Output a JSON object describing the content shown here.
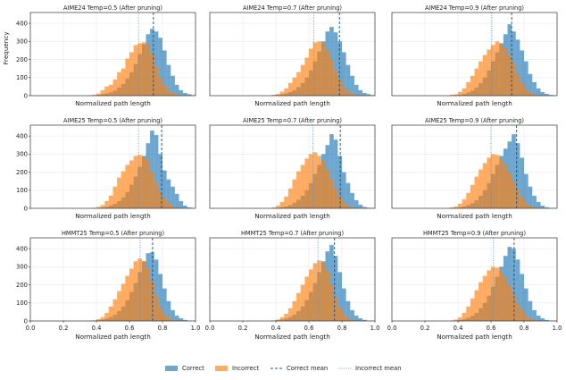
{
  "chart_data": {
    "type": "histogram",
    "shared_y_label": "Frequency",
    "x_label": "Normalized path length",
    "xlim": [
      0.0,
      1.0
    ],
    "ylim": [
      0,
      460
    ],
    "x_ticks": [
      "0.0",
      "0.2",
      "0.4",
      "0.6",
      "0.8",
      "1.0"
    ],
    "y_ticks": [
      "0",
      "100",
      "200",
      "300",
      "400"
    ],
    "bin_start": 0.0,
    "bin_width": 0.025,
    "legend": {
      "position": "bottom-center",
      "correct": "Correct",
      "incorrect": "Incorrect",
      "correct_mean": "Correct mean",
      "incorrect_mean": "Incorrect mean"
    },
    "colors": {
      "correct": "#1f77b4",
      "incorrect": "#ff7f0e",
      "correct_mean": "#1f4e79",
      "incorrect_mean": "#4a90d9",
      "grid": "#e8e8e8",
      "axis": "#333333"
    },
    "panels": [
      {
        "title": "AIME24 Temp=0.5 (After pruning)",
        "dataset": "AIME24",
        "temperature": 0.5,
        "correct_mean": 0.745,
        "incorrect_mean": 0.655,
        "correct": [
          0,
          0,
          0,
          0,
          0,
          0,
          0,
          0,
          0,
          0,
          0,
          0,
          0,
          0,
          1,
          2,
          4,
          8,
          12,
          18,
          28,
          45,
          65,
          95,
          130,
          175,
          230,
          285,
          340,
          370,
          355,
          320,
          250,
          170,
          110,
          60,
          30,
          15,
          8,
          3
        ],
        "incorrect": [
          0,
          0,
          0,
          0,
          0,
          0,
          0,
          0,
          0,
          0,
          0,
          0,
          0,
          0,
          0,
          5,
          12,
          30,
          50,
          60,
          90,
          130,
          150,
          205,
          240,
          280,
          290,
          295,
          280,
          230,
          160,
          100,
          60,
          30,
          15,
          8,
          3,
          1,
          0,
          0
        ]
      },
      {
        "title": "AIME24 Temp=0.7 (After pruning)",
        "dataset": "AIME24",
        "temperature": 0.7,
        "correct_mean": 0.785,
        "incorrect_mean": 0.63,
        "correct": [
          0,
          0,
          0,
          0,
          0,
          0,
          0,
          0,
          0,
          0,
          0,
          0,
          0,
          0,
          0,
          2,
          4,
          8,
          12,
          20,
          30,
          48,
          70,
          100,
          140,
          190,
          245,
          300,
          355,
          380,
          350,
          300,
          240,
          170,
          110,
          60,
          30,
          15,
          8,
          3
        ],
        "incorrect": [
          0,
          0,
          0,
          0,
          0,
          0,
          0,
          0,
          0,
          0,
          0,
          0,
          0,
          0,
          0,
          5,
          10,
          22,
          40,
          70,
          100,
          130,
          170,
          210,
          260,
          295,
          300,
          290,
          250,
          200,
          140,
          90,
          50,
          25,
          12,
          5,
          2,
          1,
          0,
          0
        ]
      },
      {
        "title": "AIME24 Temp=0.9 (After pruning)",
        "dataset": "AIME24",
        "temperature": 0.9,
        "correct_mean": 0.725,
        "incorrect_mean": 0.605,
        "correct": [
          0,
          0,
          0,
          0,
          0,
          0,
          0,
          0,
          0,
          0,
          0,
          0,
          0,
          0,
          0,
          2,
          5,
          10,
          18,
          28,
          45,
          70,
          100,
          140,
          190,
          240,
          290,
          340,
          395,
          355,
          310,
          250,
          190,
          120,
          75,
          40,
          20,
          10,
          4,
          2
        ],
        "incorrect": [
          0,
          0,
          0,
          0,
          0,
          0,
          0,
          0,
          0,
          0,
          0,
          0,
          0,
          0,
          5,
          8,
          20,
          40,
          75,
          110,
          150,
          190,
          225,
          255,
          280,
          300,
          285,
          260,
          220,
          180,
          120,
          70,
          35,
          18,
          8,
          3,
          1,
          0,
          0,
          0
        ]
      },
      {
        "title": "AIME25 Temp=0.5 (After pruning)",
        "dataset": "AIME25",
        "temperature": 0.5,
        "correct_mean": 0.795,
        "incorrect_mean": 0.655,
        "correct": [
          0,
          0,
          0,
          0,
          0,
          0,
          0,
          0,
          0,
          0,
          0,
          0,
          0,
          0,
          0,
          1,
          2,
          4,
          8,
          15,
          25,
          40,
          60,
          90,
          130,
          175,
          230,
          290,
          360,
          430,
          405,
          300,
          210,
          160,
          120,
          80,
          40,
          15,
          5,
          2
        ],
        "incorrect": [
          0,
          0,
          0,
          0,
          0,
          0,
          0,
          0,
          0,
          0,
          0,
          0,
          0,
          0,
          0,
          3,
          8,
          18,
          40,
          70,
          120,
          170,
          205,
          240,
          265,
          290,
          295,
          280,
          265,
          200,
          140,
          90,
          55,
          30,
          12,
          5,
          2,
          1,
          0,
          0
        ]
      },
      {
        "title": "AIME25 Temp=0.7 (After pruning)",
        "dataset": "AIME25",
        "temperature": 0.7,
        "correct_mean": 0.79,
        "incorrect_mean": 0.625,
        "correct": [
          0,
          0,
          0,
          0,
          0,
          0,
          0,
          0,
          0,
          0,
          0,
          0,
          0,
          0,
          0,
          1,
          3,
          6,
          10,
          18,
          30,
          48,
          70,
          100,
          140,
          190,
          240,
          300,
          350,
          410,
          380,
          290,
          200,
          140,
          85,
          45,
          20,
          8,
          3,
          1
        ],
        "incorrect": [
          0,
          0,
          0,
          0,
          0,
          0,
          0,
          0,
          0,
          0,
          0,
          0,
          0,
          0,
          0,
          5,
          15,
          35,
          65,
          110,
          160,
          205,
          240,
          275,
          300,
          310,
          290,
          260,
          210,
          160,
          110,
          65,
          35,
          15,
          6,
          2,
          1,
          0,
          0,
          0
        ]
      },
      {
        "title": "AIME25 Temp=0.9 (After pruning)",
        "dataset": "AIME25",
        "temperature": 0.9,
        "correct_mean": 0.755,
        "incorrect_mean": 0.6,
        "correct": [
          0,
          0,
          0,
          0,
          0,
          0,
          0,
          0,
          0,
          0,
          0,
          0,
          0,
          0,
          0,
          2,
          5,
          10,
          18,
          28,
          45,
          70,
          100,
          140,
          190,
          240,
          290,
          330,
          370,
          410,
          360,
          280,
          190,
          120,
          70,
          35,
          15,
          6,
          2,
          1
        ],
        "incorrect": [
          0,
          0,
          0,
          0,
          0,
          0,
          0,
          0,
          0,
          0,
          0,
          0,
          0,
          0,
          5,
          10,
          25,
          50,
          85,
          130,
          175,
          215,
          250,
          280,
          300,
          295,
          270,
          240,
          195,
          150,
          100,
          60,
          30,
          14,
          6,
          2,
          1,
          0,
          0,
          0
        ]
      },
      {
        "title": "HMMT25 Temp=0.5 (After pruning)",
        "dataset": "HMMT25",
        "temperature": 0.5,
        "correct_mean": 0.74,
        "incorrect_mean": 0.665,
        "correct": [
          0,
          0,
          0,
          0,
          0,
          0,
          0,
          0,
          0,
          0,
          0,
          0,
          0,
          0,
          1,
          2,
          4,
          8,
          14,
          22,
          35,
          55,
          80,
          115,
          160,
          210,
          270,
          330,
          375,
          380,
          340,
          260,
          180,
          110,
          60,
          30,
          15,
          6,
          2,
          1
        ],
        "incorrect": [
          0,
          0,
          0,
          0,
          0,
          0,
          0,
          0,
          0,
          0,
          0,
          0,
          0,
          0,
          0,
          3,
          10,
          22,
          45,
          80,
          120,
          165,
          205,
          250,
          290,
          330,
          345,
          330,
          290,
          220,
          140,
          80,
          40,
          18,
          8,
          3,
          1,
          0,
          0,
          0
        ]
      },
      {
        "title": "HMMT25 Temp=0.7 (After pruning)",
        "dataset": "HMMT25",
        "temperature": 0.7,
        "correct_mean": 0.755,
        "incorrect_mean": 0.655,
        "correct": [
          0,
          0,
          0,
          0,
          0,
          0,
          0,
          0,
          0,
          0,
          0,
          0,
          0,
          0,
          1,
          2,
          4,
          8,
          14,
          22,
          35,
          55,
          80,
          115,
          160,
          210,
          270,
          330,
          385,
          420,
          360,
          270,
          180,
          110,
          60,
          30,
          15,
          6,
          2,
          1
        ],
        "incorrect": [
          0,
          0,
          0,
          0,
          0,
          0,
          0,
          0,
          0,
          0,
          0,
          0,
          0,
          0,
          0,
          3,
          8,
          20,
          40,
          70,
          110,
          155,
          200,
          245,
          285,
          320,
          335,
          320,
          275,
          200,
          130,
          75,
          38,
          16,
          7,
          3,
          1,
          0,
          0,
          0
        ]
      },
      {
        "title": "HMMT25 Temp=0.9 (After pruning)",
        "dataset": "HMMT25",
        "temperature": 0.9,
        "correct_mean": 0.74,
        "incorrect_mean": 0.615,
        "correct": [
          0,
          0,
          0,
          0,
          0,
          0,
          0,
          0,
          0,
          0,
          0,
          0,
          0,
          0,
          0,
          2,
          5,
          10,
          18,
          28,
          45,
          70,
          100,
          140,
          190,
          245,
          300,
          360,
          410,
          400,
          340,
          260,
          180,
          110,
          60,
          30,
          15,
          6,
          2,
          1
        ],
        "incorrect": [
          0,
          0,
          0,
          0,
          0,
          0,
          0,
          0,
          0,
          0,
          0,
          0,
          0,
          0,
          3,
          8,
          20,
          45,
          80,
          125,
          170,
          215,
          250,
          280,
          300,
          295,
          275,
          240,
          195,
          150,
          100,
          60,
          30,
          14,
          6,
          2,
          1,
          0,
          0,
          0
        ]
      }
    ]
  }
}
